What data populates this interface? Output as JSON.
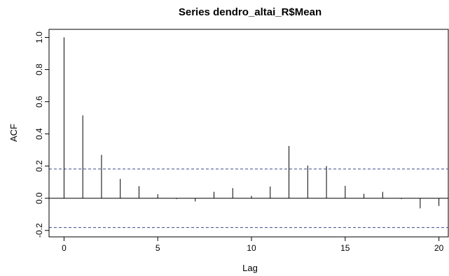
{
  "chart_data": {
    "type": "bar",
    "title": "Series  dendro_altai_R$Mean",
    "xlabel": "Lag",
    "ylabel": "ACF",
    "xlim": [
      -0.8,
      20.5
    ],
    "ylim": [
      -0.24,
      1.05
    ],
    "x_ticks": [
      "0",
      "5",
      "10",
      "15",
      "20"
    ],
    "y_ticks": [
      "-0.2",
      "0.0",
      "0.2",
      "0.4",
      "0.6",
      "0.8",
      "1.0"
    ],
    "lags": [
      0,
      1,
      2,
      3,
      4,
      5,
      6,
      7,
      8,
      9,
      10,
      11,
      12,
      13,
      14,
      15,
      16,
      17,
      18,
      19,
      20
    ],
    "acf": [
      1.0,
      0.515,
      0.27,
      0.12,
      0.075,
      0.025,
      -0.005,
      -0.02,
      0.04,
      0.063,
      0.015,
      0.073,
      0.325,
      0.203,
      0.2,
      0.077,
      0.028,
      0.04,
      -0.005,
      -0.063,
      -0.048
    ],
    "confidence_bound": 0.182,
    "colors": {
      "line": "#000000",
      "ci": "#3a4a8a"
    }
  }
}
